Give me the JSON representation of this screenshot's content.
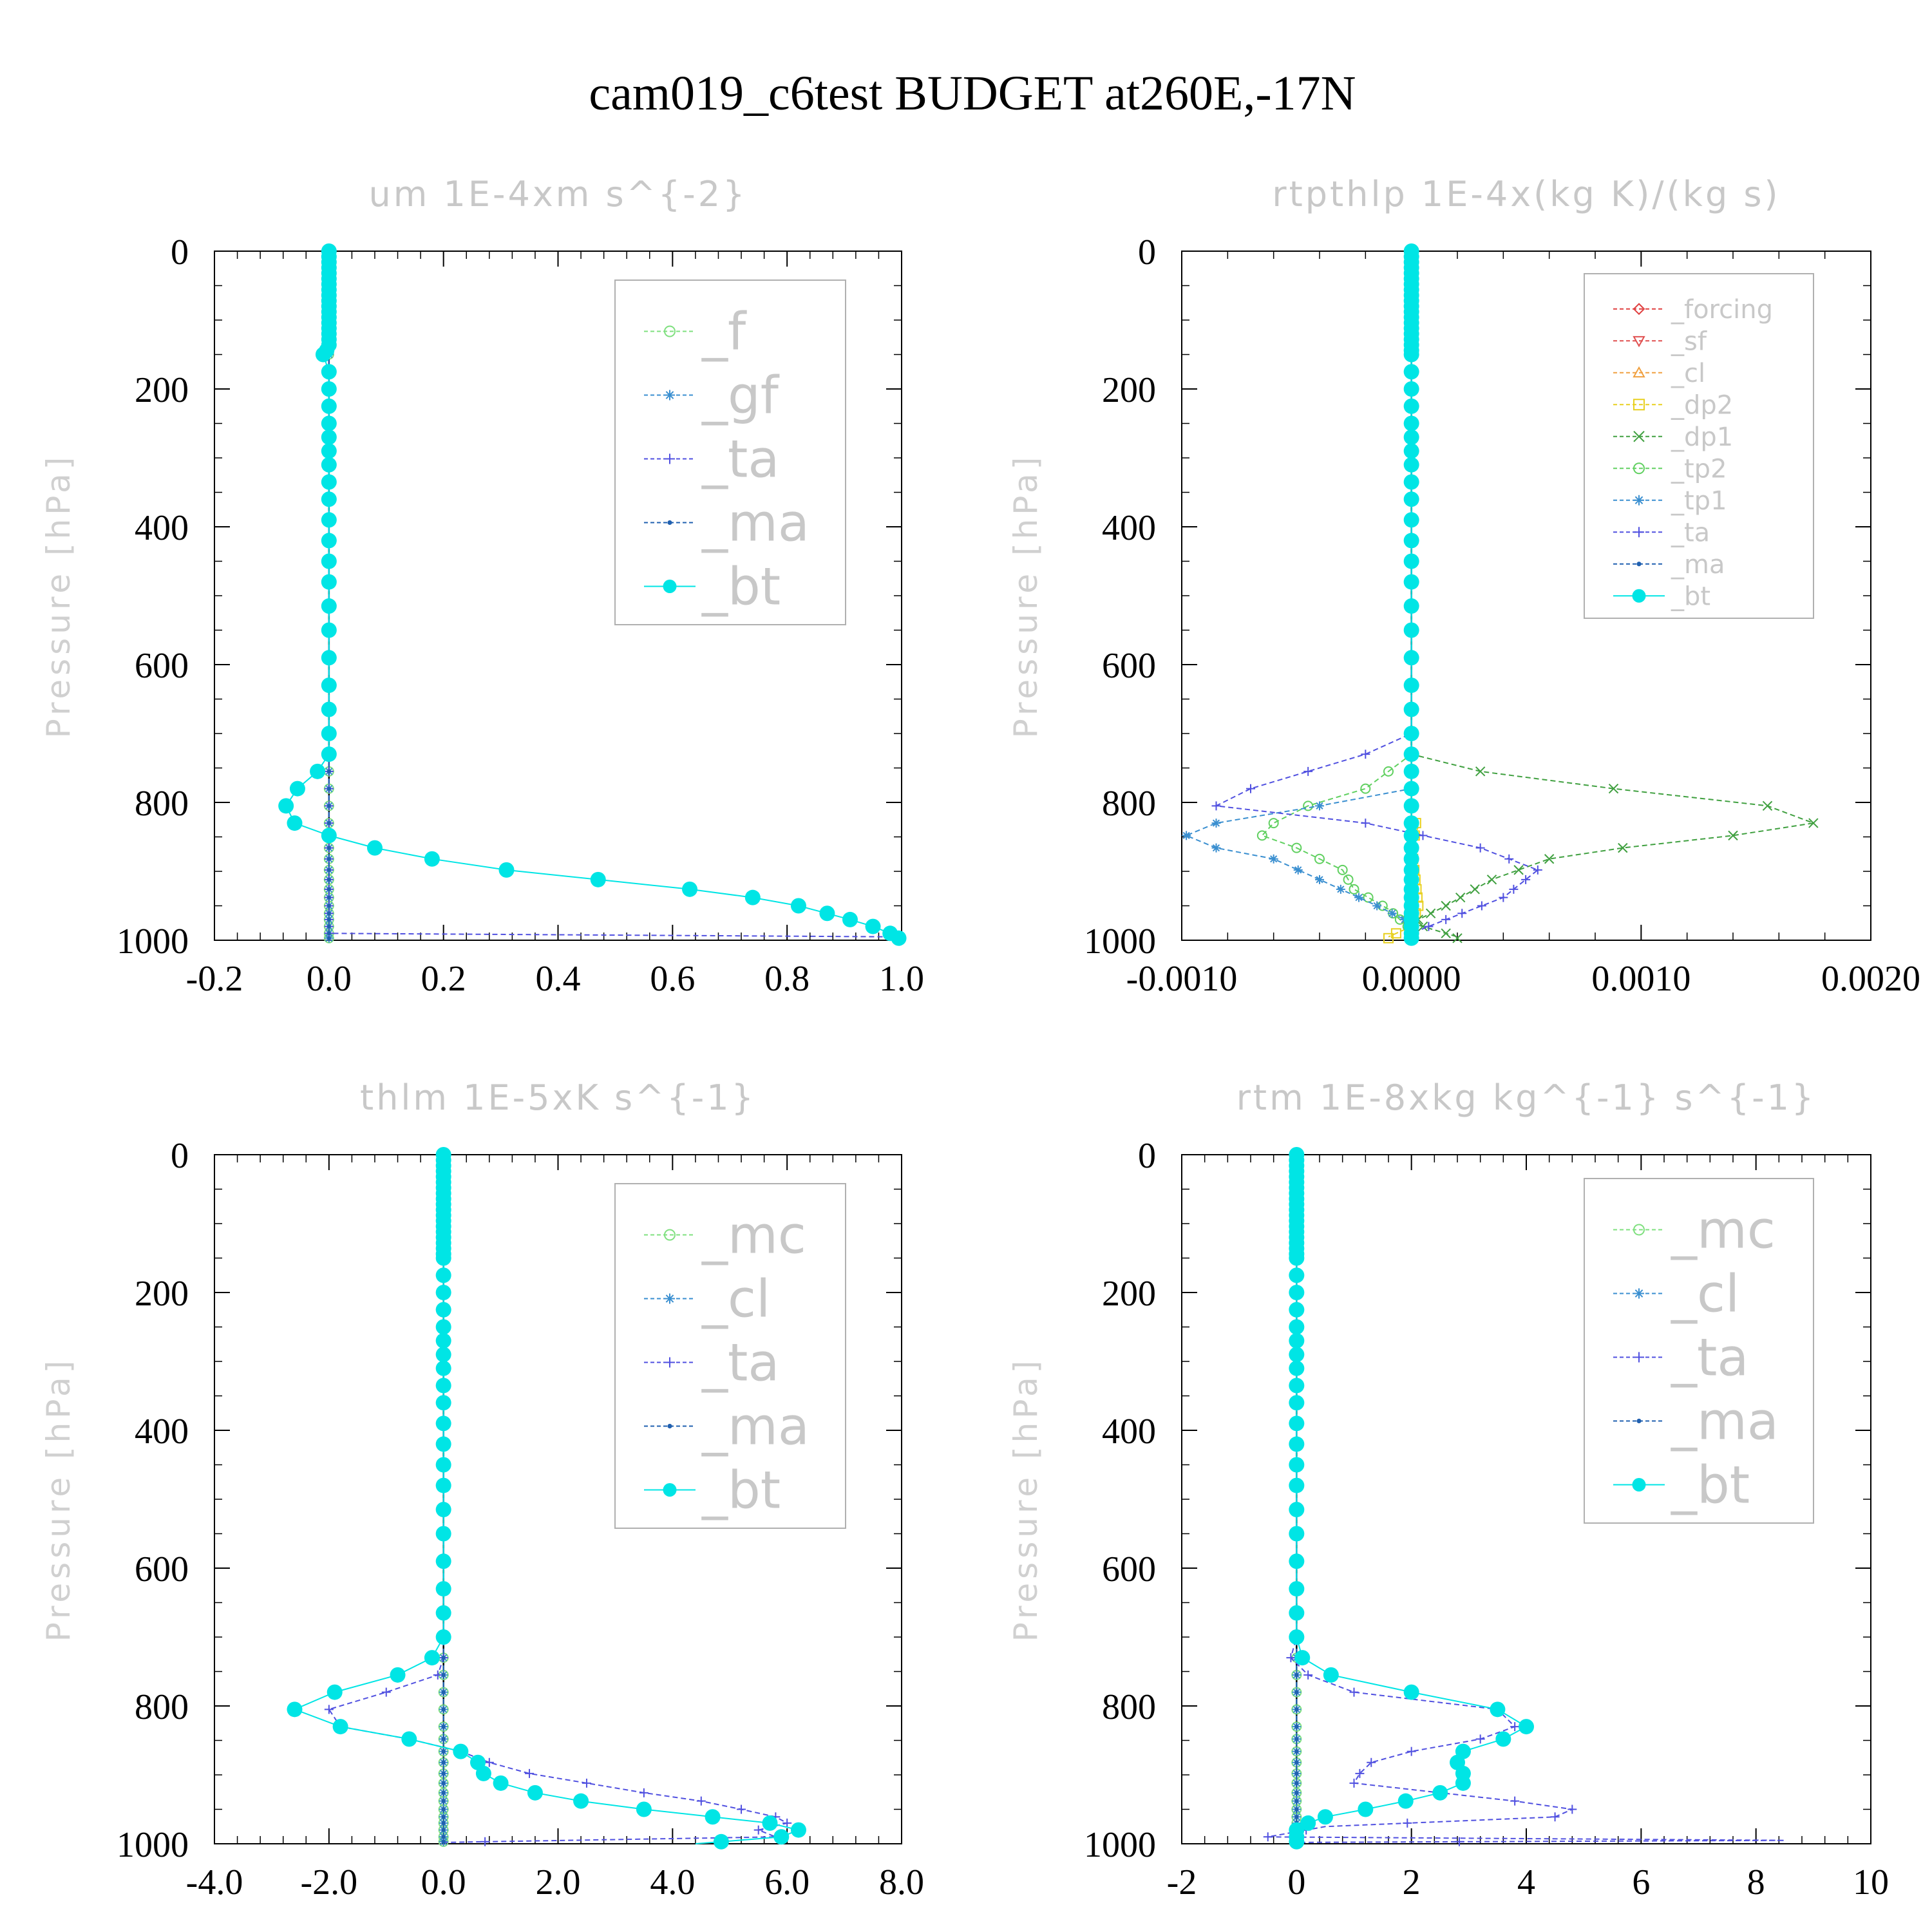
{
  "title": "cam019_c6test  BUDGET at260E,-17N",
  "colors": {
    "f": "#7fe07f",
    "gf": "#3a8fd0",
    "ta": "#5050e0",
    "ma": "#2060b0",
    "bt": "#00e5e5",
    "mc": "#7fe07f",
    "cl": "#3a8fd0",
    "forcing": "#e04040",
    "sf": "#e05050",
    "cl2": "#f0a040",
    "dp2": "#e8d020",
    "dp1": "#40a040",
    "tp2": "#60d060",
    "tp1": "#3a8fd0"
  },
  "chart_data": [
    {
      "type": "line",
      "title": "um  1E-4xm s^{-2}",
      "ylabel": "Pressure [hPa]",
      "xlim": [
        -0.2,
        1.0
      ],
      "ylim": [
        1000,
        0
      ],
      "xticks": [
        "-0.2",
        "0.0",
        "0.2",
        "0.4",
        "0.6",
        "0.8",
        "1.0"
      ],
      "yticks": [
        "0",
        "200",
        "400",
        "600",
        "800",
        "1000"
      ],
      "legend": "top-right",
      "series": [
        {
          "name": "_f",
          "key": "f",
          "values": [
            [
              0,
              0
            ],
            [
              0,
              1000
            ]
          ]
        },
        {
          "name": "_gf",
          "key": "gf",
          "values": [
            [
              0,
              0
            ],
            [
              0,
              1000
            ]
          ]
        },
        {
          "name": "_ta",
          "key": "ta",
          "values": [
            [
              0,
              0
            ],
            [
              0,
              990
            ],
            [
              0.99,
              995
            ],
            [
              1.0,
              1000
            ]
          ]
        },
        {
          "name": "_ma",
          "key": "ma",
          "values": [
            [
              0,
              0
            ],
            [
              0,
              1000
            ]
          ]
        },
        {
          "name": "_bt",
          "key": "bt",
          "values": [
            [
              0,
              0
            ],
            [
              0,
              140
            ],
            [
              -0.01,
              150
            ],
            [
              0,
              175
            ],
            [
              0,
              730
            ],
            [
              -0.02,
              755
            ],
            [
              -0.055,
              780
            ],
            [
              -0.075,
              805
            ],
            [
              -0.06,
              830
            ],
            [
              0,
              848
            ],
            [
              0.08,
              866
            ],
            [
              0.18,
              882
            ],
            [
              0.31,
              898
            ],
            [
              0.47,
              912
            ],
            [
              0.63,
              926
            ],
            [
              0.74,
              938
            ],
            [
              0.82,
              950
            ],
            [
              0.87,
              961
            ],
            [
              0.91,
              970
            ],
            [
              0.95,
              980
            ],
            [
              0.98,
              990
            ],
            [
              0.995,
              997
            ]
          ]
        }
      ]
    },
    {
      "type": "line",
      "title": "rtpthlp  1E-4x(kg K)/(kg s)",
      "ylabel": "Pressure [hPa]",
      "xlim": [
        -0.001,
        0.002
      ],
      "ylim": [
        1000,
        0
      ],
      "xticks": [
        "-0.0010",
        "0.0000",
        "0.0010",
        "0.0020"
      ],
      "yticks": [
        "0",
        "200",
        "400",
        "600",
        "800",
        "1000"
      ],
      "legend": "top-right",
      "series": [
        {
          "name": "_forcing",
          "key": "forcing",
          "values": [
            [
              0,
              0
            ],
            [
              0,
              1000
            ]
          ]
        },
        {
          "name": "_sf",
          "key": "sf",
          "values": [
            [
              0,
              0
            ],
            [
              0,
              1000
            ]
          ]
        },
        {
          "name": "_cl",
          "key": "cl2",
          "values": [
            [
              0,
              0
            ],
            [
              0,
              1000
            ]
          ]
        },
        {
          "name": "_dp2",
          "key": "dp2",
          "values": [
            [
              0,
              0
            ],
            [
              0,
              820
            ],
            [
              3e-05,
              835
            ],
            [
              0,
              860
            ],
            [
              3e-05,
              950
            ],
            [
              0,
              980
            ],
            [
              -0.0001,
              995
            ]
          ]
        },
        {
          "name": "_dp1",
          "key": "dp1",
          "values": [
            [
              0,
              0
            ],
            [
              0,
              730
            ],
            [
              0.0003,
              755
            ],
            [
              0.00088,
              780
            ],
            [
              0.00155,
              805
            ],
            [
              0.00175,
              830
            ],
            [
              0.0014,
              848
            ],
            [
              0.00092,
              866
            ],
            [
              0.0006,
              882
            ],
            [
              0.00035,
              912
            ],
            [
              0.00015,
              950
            ],
            [
              0,
              975
            ],
            [
              0.0002,
              995
            ]
          ]
        },
        {
          "name": "_tp2",
          "key": "tp2",
          "values": [
            [
              0,
              0
            ],
            [
              0,
              730
            ],
            [
              -0.0002,
              780
            ],
            [
              -0.00045,
              805
            ],
            [
              -0.0006,
              830
            ],
            [
              -0.00065,
              848
            ],
            [
              -0.0005,
              866
            ],
            [
              -0.0003,
              898
            ],
            [
              -0.00025,
              926
            ],
            [
              -0.0001,
              955
            ],
            [
              0,
              985
            ]
          ]
        },
        {
          "name": "_tp1",
          "key": "tp1",
          "values": [
            [
              0,
              0
            ],
            [
              0,
              780
            ],
            [
              -0.0004,
              805
            ],
            [
              -0.00085,
              830
            ],
            [
              -0.00098,
              848
            ],
            [
              -0.00085,
              866
            ],
            [
              -0.0006,
              882
            ],
            [
              -0.0004,
              912
            ],
            [
              -0.00015,
              950
            ],
            [
              0,
              975
            ]
          ]
        },
        {
          "name": "_ta",
          "key": "ta",
          "values": [
            [
              0,
              0
            ],
            [
              0,
              700
            ],
            [
              -0.0002,
              730
            ],
            [
              -0.00045,
              755
            ],
            [
              -0.0007,
              780
            ],
            [
              -0.00085,
              805
            ],
            [
              -0.0002,
              830
            ],
            [
              0.0003,
              866
            ],
            [
              0.00055,
              898
            ],
            [
              0.0004,
              938
            ],
            [
              0.00015,
              970
            ],
            [
              0,
              990
            ]
          ]
        },
        {
          "name": "_ma",
          "key": "ma",
          "values": [
            [
              0,
              0
            ],
            [
              0,
              1000
            ]
          ]
        },
        {
          "name": "_bt",
          "key": "bt",
          "values": [
            [
              0,
              0
            ],
            [
              0,
              1000
            ]
          ]
        }
      ]
    },
    {
      "type": "line",
      "title": "thlm  1E-5xK s^{-1}",
      "ylabel": "Pressure [hPa]",
      "xlim": [
        -4.0,
        8.0
      ],
      "ylim": [
        1000,
        0
      ],
      "xticks": [
        "-4.0",
        "-2.0",
        "0.0",
        "2.0",
        "4.0",
        "6.0",
        "8.0"
      ],
      "yticks": [
        "0",
        "200",
        "400",
        "600",
        "800",
        "1000"
      ],
      "legend": "top-right",
      "series": [
        {
          "name": "_mc",
          "key": "mc",
          "values": [
            [
              0,
              0
            ],
            [
              0,
              1000
            ]
          ]
        },
        {
          "name": "_cl",
          "key": "cl",
          "values": [
            [
              0,
              0
            ],
            [
              0,
              1000
            ]
          ]
        },
        {
          "name": "_ta",
          "key": "ta",
          "values": [
            [
              0,
              0
            ],
            [
              0,
              730
            ],
            [
              -0.1,
              755
            ],
            [
              -1.0,
              780
            ],
            [
              -2.0,
              805
            ],
            [
              -1.8,
              830
            ],
            [
              -0.6,
              848
            ],
            [
              0.3,
              866
            ],
            [
              0.8,
              882
            ],
            [
              1.5,
              898
            ],
            [
              2.5,
              912
            ],
            [
              3.5,
              926
            ],
            [
              4.5,
              938
            ],
            [
              5.2,
              950
            ],
            [
              5.8,
              961
            ],
            [
              6.0,
              970
            ],
            [
              5.5,
              980
            ],
            [
              5.8,
              990
            ],
            [
              0,
              998
            ]
          ]
        },
        {
          "name": "_ma",
          "key": "ma",
          "values": [
            [
              0,
              0
            ],
            [
              0,
              1000
            ]
          ]
        },
        {
          "name": "_bt",
          "key": "bt",
          "values": [
            [
              0,
              0
            ],
            [
              0,
              700
            ],
            [
              -0.2,
              730
            ],
            [
              -0.8,
              755
            ],
            [
              -1.9,
              780
            ],
            [
              -2.6,
              805
            ],
            [
              -1.8,
              830
            ],
            [
              -0.6,
              848
            ],
            [
              0.3,
              866
            ],
            [
              0.6,
              882
            ],
            [
              0.7,
              898
            ],
            [
              1.0,
              912
            ],
            [
              1.6,
              926
            ],
            [
              2.4,
              938
            ],
            [
              3.5,
              950
            ],
            [
              4.7,
              961
            ],
            [
              5.7,
              970
            ],
            [
              6.2,
              980
            ],
            [
              5.9,
              990
            ],
            [
              4.4,
              1000
            ]
          ]
        }
      ]
    },
    {
      "type": "line",
      "title": "rtm  1E-8xkg kg^{-1} s^{-1}",
      "ylabel": "Pressure [hPa]",
      "xlim": [
        -2,
        10
      ],
      "ylim": [
        1000,
        0
      ],
      "xticks": [
        "-2",
        "0",
        "2",
        "4",
        "6",
        "8",
        "10"
      ],
      "yticks": [
        "0",
        "200",
        "400",
        "600",
        "800",
        "1000"
      ],
      "legend": "top-right",
      "series": [
        {
          "name": "_mc",
          "key": "mc",
          "values": [
            [
              0,
              0
            ],
            [
              0,
              1000
            ]
          ]
        },
        {
          "name": "_cl",
          "key": "cl",
          "values": [
            [
              0,
              0
            ],
            [
              0,
              1000
            ]
          ]
        },
        {
          "name": "_ta",
          "key": "ta",
          "values": [
            [
              0,
              0
            ],
            [
              0,
              700
            ],
            [
              -0.1,
              730
            ],
            [
              0.2,
              755
            ],
            [
              1.0,
              780
            ],
            [
              2.0,
              790
            ],
            [
              3.5,
              805
            ],
            [
              3.8,
              830
            ],
            [
              3.2,
              848
            ],
            [
              2.0,
              866
            ],
            [
              1.3,
              882
            ],
            [
              1.1,
              898
            ],
            [
              1.0,
              912
            ],
            [
              2.5,
              926
            ],
            [
              3.8,
              938
            ],
            [
              4.8,
              950
            ],
            [
              4.5,
              961
            ],
            [
              0.5,
              975
            ],
            [
              -0.5,
              990
            ],
            [
              8.5,
              995
            ],
            [
              0,
              998
            ]
          ]
        },
        {
          "name": "_ma",
          "key": "ma",
          "values": [
            [
              0,
              0
            ],
            [
              0,
              1000
            ]
          ]
        },
        {
          "name": "_bt",
          "key": "bt",
          "values": [
            [
              0,
              0
            ],
            [
              0,
              700
            ],
            [
              0.1,
              730
            ],
            [
              0.6,
              755
            ],
            [
              2.0,
              780
            ],
            [
              3.5,
              805
            ],
            [
              4.0,
              830
            ],
            [
              3.6,
              848
            ],
            [
              2.9,
              866
            ],
            [
              2.8,
              882
            ],
            [
              2.9,
              898
            ],
            [
              2.9,
              912
            ],
            [
              2.5,
              926
            ],
            [
              1.9,
              938
            ],
            [
              1.2,
              950
            ],
            [
              0.5,
              961
            ],
            [
              0.2,
              970
            ],
            [
              0,
              980
            ],
            [
              0,
              990
            ]
          ]
        }
      ]
    }
  ]
}
